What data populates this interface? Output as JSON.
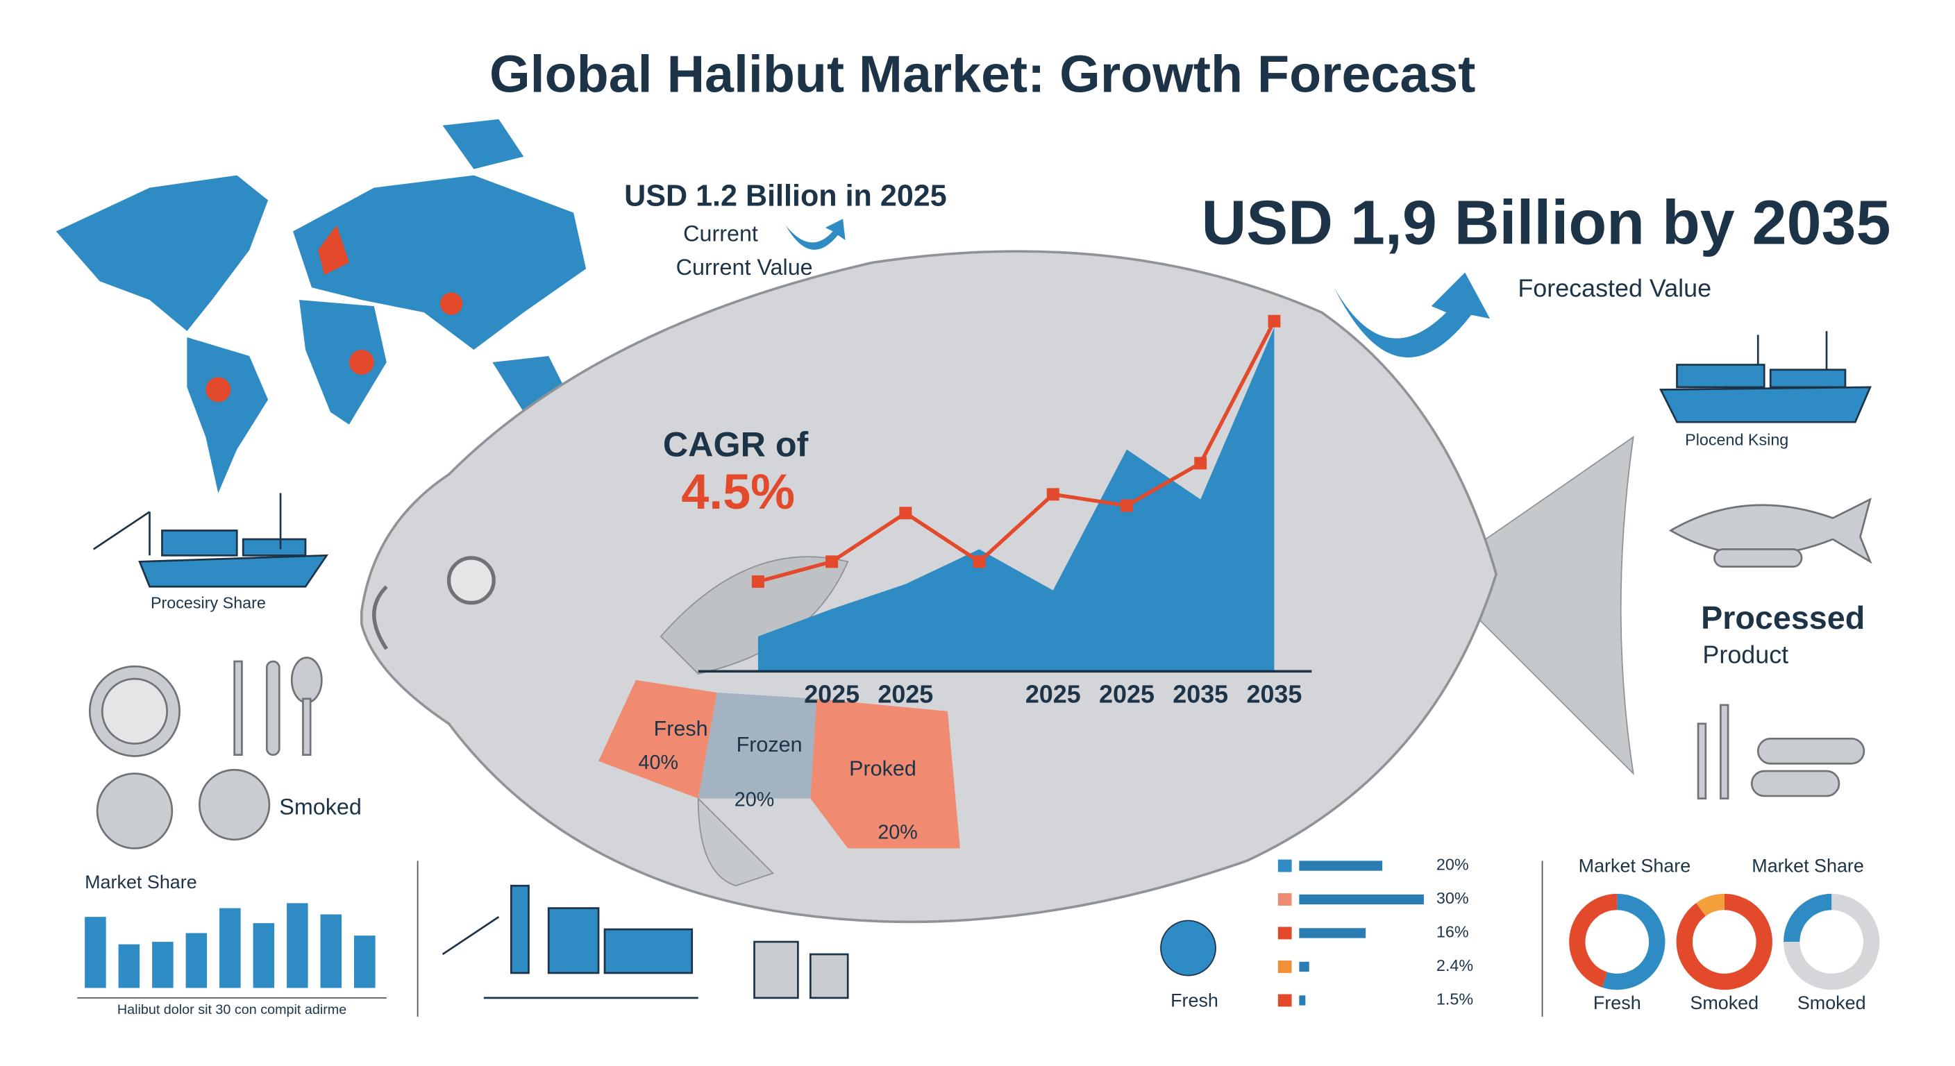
{
  "title": "Global Halibut Market: Growth Forecast",
  "current": {
    "headline": "USD 1.2 Billion in 2025",
    "label": "Current",
    "sublabel": "Current Value"
  },
  "forecast": {
    "headline": "USD 1,9 Billion by 2035",
    "label": "Forecasted Value"
  },
  "cagr": {
    "label": "CAGR of",
    "value": "4.5%"
  },
  "icons": {
    "processing_share": "Procesiry Share",
    "smoked": "Smoked",
    "placend": "Plocend Ksing",
    "processed": "Processed",
    "product": "Product"
  },
  "segments": [
    {
      "name": "Fresh",
      "share": "40%"
    },
    {
      "name": "Frozen",
      "share": "20%"
    },
    {
      "name": "Proked",
      "share": "20%"
    }
  ],
  "chart_data": [
    {
      "type": "line",
      "categories": [
        null,
        "2025",
        "2025",
        null,
        "2025",
        "2025",
        "2035",
        "2035"
      ],
      "series": [
        {
          "kind": "area",
          "color": "#2e8bc4",
          "values": [
            28,
            50,
            70,
            98,
            65,
            178,
            138,
            276
          ]
        },
        {
          "kind": "line",
          "color": "#e3492b",
          "values": [
            72,
            88,
            127,
            88,
            142,
            133,
            167,
            281
          ]
        }
      ],
      "ylim": [
        0,
        300
      ]
    },
    {
      "type": "bar",
      "title": "Market Share",
      "caption": "Halibut dolor sit 30 con compit adirme",
      "color": "#2e8bc4",
      "values": [
        57,
        35,
        37,
        44,
        64,
        52,
        68,
        59,
        42
      ],
      "ylim": [
        0,
        80
      ]
    },
    {
      "type": "hbar",
      "caption": "Fresh",
      "color": "#2a7db3",
      "marker_colors": [
        "#2e8bc4",
        "#f08a70",
        "#e3492b",
        "#f0913a",
        "#e3492b"
      ],
      "values": [
        20,
        30,
        16,
        2.4,
        1.5
      ],
      "value_labels": [
        "20%",
        "30%",
        "16%",
        "2.4%",
        "1.5%"
      ],
      "xlim": [
        0,
        30
      ]
    },
    {
      "type": "pie",
      "title": "Market Share",
      "label": "Fresh",
      "values": [
        55,
        45
      ],
      "colors": [
        "#2e8bc4",
        "#e3492b"
      ]
    },
    {
      "type": "pie",
      "title": "Market Share",
      "label": "Smoked",
      "values": [
        90,
        10
      ],
      "colors": [
        "#e3492b",
        "#f5a03a"
      ]
    },
    {
      "type": "pie",
      "label": "Smoked",
      "values": [
        75,
        25
      ],
      "colors": [
        "#d4d6d9",
        "#2e8bc4"
      ]
    }
  ]
}
